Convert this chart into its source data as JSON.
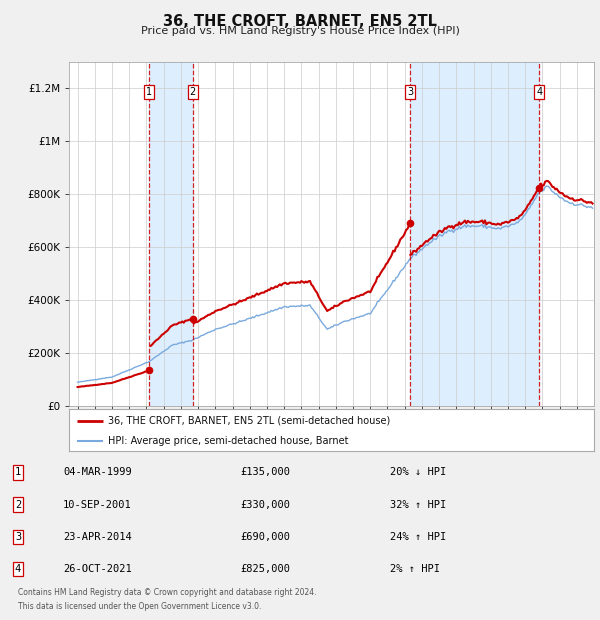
{
  "title": "36, THE CROFT, BARNET, EN5 2TL",
  "subtitle": "Price paid vs. HM Land Registry's House Price Index (HPI)",
  "footer1": "Contains HM Land Registry data © Crown copyright and database right 2024.",
  "footer2": "This data is licensed under the Open Government Licence v3.0.",
  "legend_property": "36, THE CROFT, BARNET, EN5 2TL (semi-detached house)",
  "legend_hpi": "HPI: Average price, semi-detached house, Barnet",
  "transactions": [
    {
      "num": 1,
      "date": "04-MAR-1999",
      "price": 135000,
      "pct": "20%",
      "dir": "↓",
      "year": 1999.17
    },
    {
      "num": 2,
      "date": "10-SEP-2001",
      "price": 330000,
      "pct": "32%",
      "dir": "↑",
      "year": 2001.69
    },
    {
      "num": 3,
      "date": "23-APR-2014",
      "price": 690000,
      "pct": "24%",
      "dir": "↑",
      "year": 2014.31
    },
    {
      "num": 4,
      "date": "26-OCT-2021",
      "price": 825000,
      "pct": "2%",
      "dir": "↑",
      "year": 2021.82
    }
  ],
  "property_color": "#cc0000",
  "hpi_color": "#7aaadd",
  "shade_color": "#ddeeff",
  "vline_color": "#cc0000",
  "background_color": "#f0f0f0",
  "plot_bg_color": "#ffffff",
  "ylim_max": 1300000,
  "xlim_start": 1994.5,
  "xlim_end": 2025.0,
  "yticks": [
    0,
    200000,
    400000,
    600000,
    800000,
    1000000,
    1200000
  ],
  "ylabels": [
    "£0",
    "£200K",
    "£400K",
    "£600K",
    "£800K",
    "£1M",
    "£1.2M"
  ]
}
